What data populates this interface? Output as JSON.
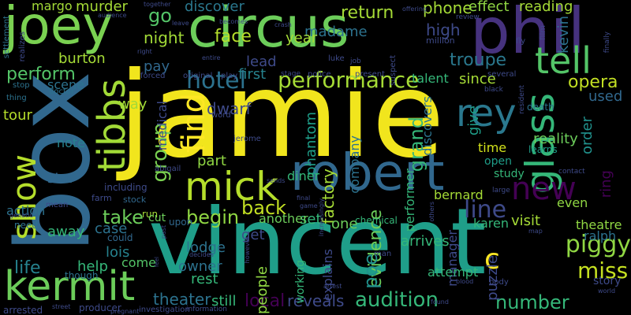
{
  "background": "#000000",
  "colormap": "viridis",
  "words": [
    {
      "text": "jamie",
      "color": "#f1e51d"
    },
    {
      "text": "vincent",
      "color": "#1f9e89"
    },
    {
      "text": "box",
      "color": "#31688e"
    },
    {
      "text": "phil",
      "color": "#46327e"
    },
    {
      "text": "circus",
      "color": "#6ccd5a"
    },
    {
      "text": "joey",
      "color": "#7ad151"
    },
    {
      "text": "robert",
      "color": "#31688e"
    },
    {
      "text": "kermit",
      "color": "#6ccd5a"
    },
    {
      "text": "glass",
      "color": "#35b779"
    },
    {
      "text": "mick",
      "color": "#b5de2b"
    },
    {
      "text": "tibbs",
      "color": "#a2da37"
    },
    {
      "text": "tell",
      "color": "#54c568"
    },
    {
      "text": "rey",
      "color": "#2a788e"
    },
    {
      "text": "show",
      "color": "#b5de2b"
    },
    {
      "text": "new",
      "color": "#440154"
    },
    {
      "text": "find",
      "color": "#fde725"
    },
    {
      "text": "hotel",
      "color": "#2c728e"
    },
    {
      "text": "performance",
      "color": "#a5db36"
    },
    {
      "text": "group",
      "color": "#7ad151"
    },
    {
      "text": "audition",
      "color": "#35b779"
    },
    {
      "text": "miss",
      "color": "#c5e021"
    },
    {
      "text": "piggy",
      "color": "#90d743"
    },
    {
      "text": "c",
      "color": "#fde725"
    },
    {
      "text": "line",
      "color": "#3e4a89"
    },
    {
      "text": "number",
      "color": "#35b779"
    },
    {
      "text": "opera",
      "color": "#c2df23"
    },
    {
      "text": "life",
      "color": "#26828e"
    },
    {
      "text": "take",
      "color": "#6ccd5a"
    },
    {
      "text": "begin",
      "color": "#90d743"
    },
    {
      "text": "back",
      "color": "#c2df23"
    },
    {
      "text": "theater",
      "color": "#2c728e"
    },
    {
      "text": "reveals",
      "color": "#3e4a89"
    },
    {
      "text": "local",
      "color": "#440154"
    },
    {
      "text": "evidence",
      "color": "#6ccd5a"
    },
    {
      "text": "grand",
      "color": "#35b779"
    },
    {
      "text": "poe",
      "color": "#21918c"
    },
    {
      "text": "troupe",
      "color": "#2a788e"
    },
    {
      "text": "perform",
      "color": "#54c568"
    },
    {
      "text": "night",
      "color": "#a2da37"
    },
    {
      "text": "go",
      "color": "#54c568"
    },
    {
      "text": "face",
      "color": "#b5de2b"
    },
    {
      "text": "return",
      "color": "#a5db36"
    },
    {
      "text": "discover",
      "color": "#2a788e"
    },
    {
      "text": "murder",
      "color": "#a5db36"
    },
    {
      "text": "madame",
      "color": "#2c728e"
    },
    {
      "text": "phone",
      "color": "#a5db36"
    },
    {
      "text": "effect",
      "color": "#90d743"
    },
    {
      "text": "reading",
      "color": "#a5db36"
    },
    {
      "text": "high",
      "color": "#3e4a89"
    },
    {
      "text": "kevin",
      "color": "#2c728e"
    },
    {
      "text": "burton",
      "color": "#a5db36"
    },
    {
      "text": "pay",
      "color": "#31688e"
    },
    {
      "text": "lead",
      "color": "#3e4a89"
    },
    {
      "text": "first",
      "color": "#26828e"
    },
    {
      "text": "talent",
      "color": "#35b779"
    },
    {
      "text": "since",
      "color": "#a5db36"
    },
    {
      "text": "used",
      "color": "#31688e"
    },
    {
      "text": "order",
      "color": "#21918c"
    },
    {
      "text": "ring",
      "color": "#440154"
    },
    {
      "text": "reality",
      "color": "#6ccd5a"
    },
    {
      "text": "time",
      "color": "#d2e21b"
    },
    {
      "text": "give",
      "color": "#1f9e89"
    },
    {
      "text": "phantom",
      "color": "#1f9e89"
    },
    {
      "text": "dwarf",
      "color": "#3e4a89"
    },
    {
      "text": "medical",
      "color": "#3e4a89"
    },
    {
      "text": "company",
      "color": "#2c728e"
    },
    {
      "text": "factory",
      "color": "#a5db36"
    },
    {
      "text": "discovers",
      "color": "#2c728e"
    },
    {
      "text": "performer",
      "color": "#35b779"
    },
    {
      "text": "year",
      "color": "#a5db36"
    },
    {
      "text": "margo",
      "color": "#a2da37"
    },
    {
      "text": "way",
      "color": "#a2da37"
    },
    {
      "text": "tour",
      "color": "#b5de2b"
    },
    {
      "text": "scene",
      "color": "#2c728e"
    },
    {
      "text": "note",
      "color": "#26828e"
    },
    {
      "text": "star",
      "color": "#31688e"
    },
    {
      "text": "action",
      "color": "#2c728e"
    },
    {
      "text": "away",
      "color": "#35b779"
    },
    {
      "text": "help",
      "color": "#35b779"
    },
    {
      "text": "lois",
      "color": "#26828e"
    },
    {
      "text": "case",
      "color": "#2c728e"
    },
    {
      "text": "part",
      "color": "#90d743"
    },
    {
      "text": "lodge",
      "color": "#2c728e"
    },
    {
      "text": "owner",
      "color": "#2c728e"
    },
    {
      "text": "rest",
      "color": "#35b779"
    },
    {
      "text": "get",
      "color": "#3e4a89"
    },
    {
      "text": "set",
      "color": "#35b779"
    },
    {
      "text": "one",
      "color": "#6ccd5a"
    },
    {
      "text": "arrives",
      "color": "#35b779"
    },
    {
      "text": "visit",
      "color": "#a5db36"
    },
    {
      "text": "theatre",
      "color": "#90d743"
    },
    {
      "text": "ralph",
      "color": "#2c728e"
    },
    {
      "text": "bernard",
      "color": "#a5db36"
    },
    {
      "text": "karen",
      "color": "#35b779"
    },
    {
      "text": "manager",
      "color": "#3e4a89"
    },
    {
      "text": "puzzle",
      "color": "#3e4a89"
    },
    {
      "text": "story",
      "color": "#3e4a89"
    },
    {
      "text": "still",
      "color": "#35b779"
    },
    {
      "text": "people",
      "color": "#90d743"
    },
    {
      "text": "attempt",
      "color": "#35b779"
    },
    {
      "text": "come",
      "color": "#54c568"
    },
    {
      "text": "explains",
      "color": "#3e4a89"
    },
    {
      "text": "diner",
      "color": "#35b779"
    },
    {
      "text": "another",
      "color": "#6ccd5a"
    },
    {
      "text": "working",
      "color": "#35b779"
    },
    {
      "text": "even",
      "color": "#90d743"
    },
    {
      "text": "open",
      "color": "#1f9e89"
    },
    {
      "text": "study",
      "color": "#35b779"
    },
    {
      "text": "learns",
      "color": "#1f9e89"
    },
    {
      "text": "death",
      "color": "#2c728e"
    },
    {
      "text": "chemical",
      "color": "#35b779"
    },
    {
      "text": "including",
      "color": "#3e4a89"
    },
    {
      "text": "stock",
      "color": "#31688e"
    },
    {
      "text": "farm",
      "color": "#3e4a89"
    },
    {
      "text": "could",
      "color": "#31688e"
    },
    {
      "text": "upon",
      "color": "#31688e"
    },
    {
      "text": "run",
      "color": "#a5db36"
    },
    {
      "text": "cut",
      "color": "#6ccd5a"
    },
    {
      "text": "need",
      "color": "#2c728e"
    },
    {
      "text": "though",
      "color": "#2c728e"
    },
    {
      "text": "arrested",
      "color": "#3e4a89"
    },
    {
      "text": "producer",
      "color": "#3e4a89"
    },
    {
      "text": "investigation",
      "color": "#3e4a89"
    },
    {
      "text": "information",
      "color": "#3e4a89"
    },
    {
      "text": "settlement",
      "color": "#2c728e"
    },
    {
      "text": "realizes",
      "color": "#3e4a89"
    },
    {
      "text": "doctor",
      "color": "#2c728e"
    },
    {
      "text": "thing",
      "color": "#2c728e"
    },
    {
      "text": "stop",
      "color": "#2c728e"
    },
    {
      "text": "mean",
      "color": "#3e4a89"
    },
    {
      "text": "abigail",
      "color": "#3e4a89"
    },
    {
      "text": "forced",
      "color": "#3e4a89"
    },
    {
      "text": "original",
      "color": "#3e4a89"
    },
    {
      "text": "play",
      "color": "#3e4a89"
    },
    {
      "text": "stage",
      "color": "#3e4a89"
    },
    {
      "text": "police",
      "color": "#3e4a89"
    },
    {
      "text": "present",
      "color": "#3e4a89"
    },
    {
      "text": "suspect",
      "color": "#3e4a89"
    },
    {
      "text": "several",
      "color": "#3e4a89"
    },
    {
      "text": "black",
      "color": "#3e4a89"
    },
    {
      "text": "resident",
      "color": "#3e4a89"
    },
    {
      "text": "million",
      "color": "#3e4a89"
    },
    {
      "text": "review",
      "color": "#3e4a89"
    },
    {
      "text": "luke",
      "color": "#3e4a89"
    },
    {
      "text": "job",
      "color": "#3e4a89"
    },
    {
      "text": "becomes",
      "color": "#3e4a89"
    },
    {
      "text": "crash",
      "color": "#3e4a89"
    },
    {
      "text": "word",
      "color": "#3e4a89"
    },
    {
      "text": "jerome",
      "color": "#3e4a89"
    },
    {
      "text": "sends",
      "color": "#3e4a89"
    },
    {
      "text": "increasingly",
      "color": "#3e4a89"
    },
    {
      "text": "game",
      "color": "#3e4a89"
    },
    {
      "text": "final",
      "color": "#3e4a89"
    },
    {
      "text": "however",
      "color": "#3e4a89"
    },
    {
      "text": "decides",
      "color": "#3e4a89"
    },
    {
      "text": "man",
      "color": "#3e4a89"
    },
    {
      "text": "arrest",
      "color": "#3e4a89"
    },
    {
      "text": "blood",
      "color": "#3e4a89"
    },
    {
      "text": "body",
      "color": "#3e4a89"
    },
    {
      "text": "found",
      "color": "#3e4a89"
    },
    {
      "text": "world",
      "color": "#3e4a89"
    },
    {
      "text": "map",
      "color": "#3e4a89"
    },
    {
      "text": "large",
      "color": "#3e4a89"
    },
    {
      "text": "contact",
      "color": "#3e4a89"
    },
    {
      "text": "film",
      "color": "#3e4a89"
    },
    {
      "text": "fly",
      "color": "#3e4a89"
    },
    {
      "text": "offering",
      "color": "#3e4a89"
    },
    {
      "text": "audience",
      "color": "#3e4a89"
    },
    {
      "text": "together",
      "color": "#3e4a89"
    },
    {
      "text": "leave",
      "color": "#3e4a89"
    },
    {
      "text": "finally",
      "color": "#3e4a89"
    },
    {
      "text": "entire",
      "color": "#3e4a89"
    },
    {
      "text": "right",
      "color": "#3e4a89"
    },
    {
      "text": "feel",
      "color": "#3e4a89"
    },
    {
      "text": "past",
      "color": "#3e4a89"
    },
    {
      "text": "genetic",
      "color": "#3e4a89"
    },
    {
      "text": "street",
      "color": "#3e4a89"
    },
    {
      "text": "pregnant",
      "color": "#3e4a89"
    },
    {
      "text": "others",
      "color": "#3e4a89"
    }
  ]
}
